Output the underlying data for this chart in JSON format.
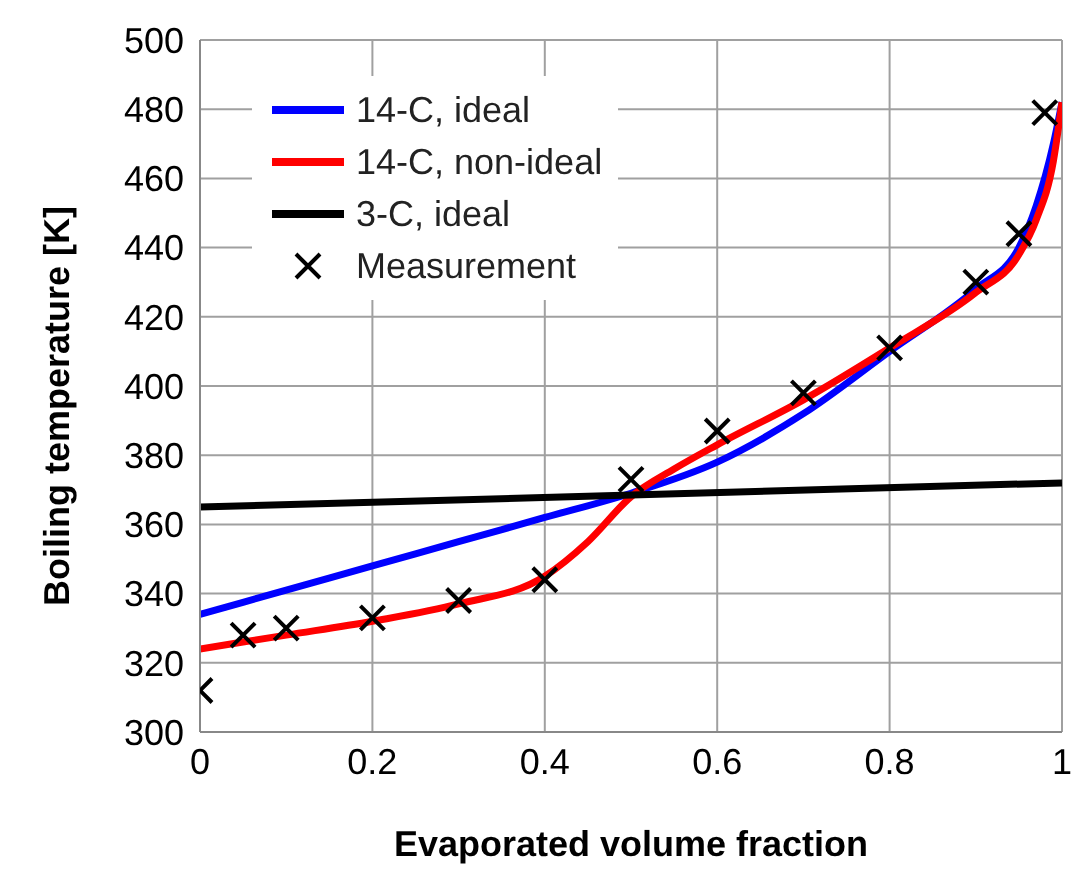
{
  "chart_data": {
    "type": "line",
    "xlabel": "Evaporated volume fraction",
    "ylabel": "Boiling temperature [K]",
    "xlim": [
      0,
      1
    ],
    "xticks": [
      0,
      0.2,
      0.4,
      0.6,
      0.8,
      1
    ],
    "ylim": [
      300,
      500
    ],
    "yticks": [
      300,
      320,
      340,
      360,
      380,
      400,
      420,
      440,
      460,
      480,
      500
    ],
    "grid": true,
    "legend": "top left",
    "marker": "none",
    "line_style": "solid",
    "series": [
      {
        "name": "14-C, ideal",
        "color": "#0000ff",
        "x": [
          0,
          0.1,
          0.2,
          0.3,
          0.4,
          0.5,
          0.6,
          0.7,
          0.8,
          0.9,
          0.95,
          0.97,
          0.99,
          1
        ],
        "values": [
          334,
          341,
          348,
          355,
          362,
          369,
          378,
          392,
          410,
          428,
          440,
          452,
          470,
          482
        ]
      },
      {
        "name": "14-C, non-ideal",
        "color": "#ff0000",
        "x": [
          0,
          0.1,
          0.2,
          0.3,
          0.4,
          0.45,
          0.5,
          0.55,
          0.6,
          0.7,
          0.8,
          0.9,
          0.95,
          0.97,
          0.99,
          1
        ],
        "values": [
          324,
          328,
          332,
          337,
          345,
          355,
          368,
          376,
          383,
          396,
          411,
          427,
          438,
          448,
          465,
          482
        ]
      },
      {
        "name": "3-C, ideal",
        "color": "#000000",
        "x": [
          0,
          1
        ],
        "values": [
          365,
          372
        ]
      },
      {
        "name": "Measurement",
        "type": "scatter",
        "marker": "cross",
        "color": "#000000",
        "x": [
          0,
          0.05,
          0.1,
          0.2,
          0.3,
          0.4,
          0.5,
          0.6,
          0.7,
          0.8,
          0.9,
          0.95,
          0.98
        ],
        "values": [
          312,
          328,
          330,
          333,
          338,
          344,
          373,
          387,
          398,
          411,
          430,
          444,
          479
        ]
      }
    ]
  }
}
